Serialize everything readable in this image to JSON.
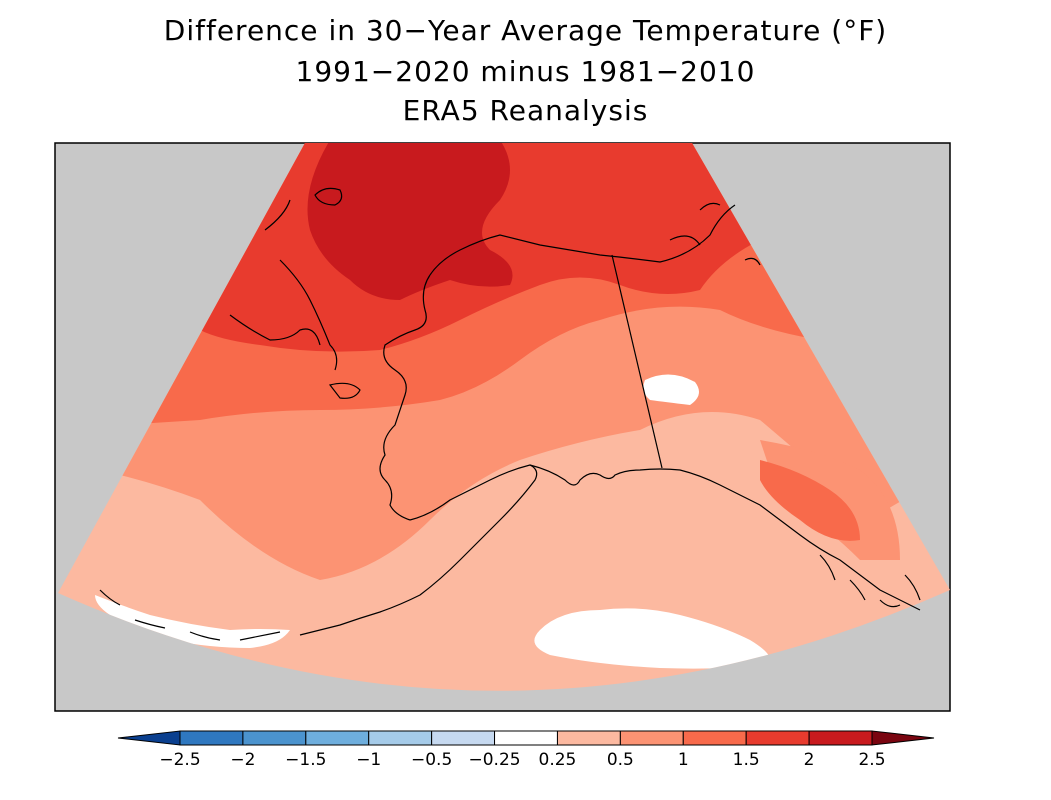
{
  "title": {
    "line1": "Difference in 30−Year Average Temperature (°F)",
    "line2": "1991−2020 minus 1981−2010",
    "line3": "ERA5 Reanalysis"
  },
  "map": {
    "region": "Alaska",
    "background_color": "#c8c8c8",
    "coastline_color": "#000000"
  },
  "colorbar": {
    "labels": [
      "−2.5",
      "−2",
      "−1.5",
      "−1",
      "−0.5",
      "−0.25",
      "0.25",
      "0.5",
      "1",
      "1.5",
      "2",
      "2.5"
    ],
    "colors": [
      "#0a4fa2",
      "#2f78c0",
      "#4b93ce",
      "#6eaedd",
      "#a5cbe9",
      "#c6d9f0",
      "#ffffff",
      "#fcb9a0",
      "#fc9373",
      "#f86a4b",
      "#e83b2e",
      "#c81a1e",
      "#930a10"
    ],
    "low_end_color": "#0a3f8f",
    "high_end_color": "#7a0510"
  }
}
